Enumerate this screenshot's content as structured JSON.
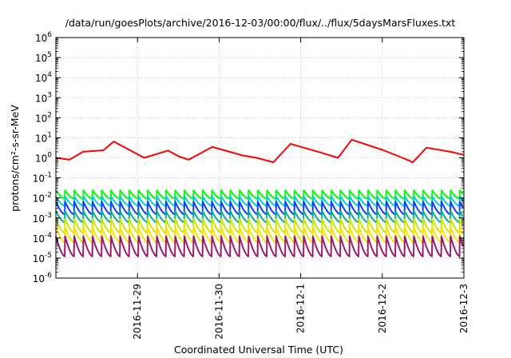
{
  "chart_data": {
    "type": "line",
    "title": "/data/run/goesPlots/archive/2016-12-03/00:00/flux/../flux/5daysMarsFluxes.txt",
    "xlabel": "Coordinated Universal Time (UTC)",
    "ylabel": "protons/cm²-s-sr-MeV",
    "y_scale": "log",
    "ylim_exp": [
      -6,
      6
    ],
    "y_tick_exponents": [
      -6,
      -5,
      -4,
      -3,
      -2,
      -1,
      0,
      1,
      2,
      3,
      4,
      5,
      6
    ],
    "y_tick_base": "10",
    "xlim": [
      "2016-11-28T00:00",
      "2016-12-03T00:00"
    ],
    "x_ticks": [
      {
        "value": "2016-11-29T00:00",
        "label": "2016-11-29"
      },
      {
        "value": "2016-11-30T00:00",
        "label": "2016-11-30"
      },
      {
        "value": "2016-12-01T00:00",
        "label": "2016-12-1"
      },
      {
        "value": "2016-12-02T00:00",
        "label": "2016-12-2"
      },
      {
        "value": "2016-12-03T00:00",
        "label": "2016-12-3"
      }
    ],
    "grid": true,
    "legend": "none",
    "sawtooth_period_hours": 2.7,
    "series": [
      {
        "color": "#ff0000",
        "shape": "red_profile",
        "profile": [
          {
            "t": "2016-11-28T00:00",
            "v": 1.0
          },
          {
            "t": "2016-11-28T04:00",
            "v": 0.8
          },
          {
            "t": "2016-11-28T08:00",
            "v": 2.0
          },
          {
            "t": "2016-11-28T14:00",
            "v": 2.4
          },
          {
            "t": "2016-11-28T17:00",
            "v": 6.5
          },
          {
            "t": "2016-11-29T02:00",
            "v": 1.0
          },
          {
            "t": "2016-11-29T09:00",
            "v": 2.3
          },
          {
            "t": "2016-11-29T12:00",
            "v": 1.2
          },
          {
            "t": "2016-11-29T15:00",
            "v": 0.8
          },
          {
            "t": "2016-11-29T22:00",
            "v": 3.5
          },
          {
            "t": "2016-11-30T07:00",
            "v": 1.3
          },
          {
            "t": "2016-11-30T11:00",
            "v": 1.0
          },
          {
            "t": "2016-11-30T16:00",
            "v": 0.6
          },
          {
            "t": "2016-11-30T21:00",
            "v": 5.0
          },
          {
            "t": "2016-12-01T06:00",
            "v": 1.8
          },
          {
            "t": "2016-12-01T11:00",
            "v": 1.0
          },
          {
            "t": "2016-12-01T15:00",
            "v": 8.0
          },
          {
            "t": "2016-12-02T00:00",
            "v": 2.5
          },
          {
            "t": "2016-12-02T06:00",
            "v": 1.0
          },
          {
            "t": "2016-12-02T09:00",
            "v": 0.6
          },
          {
            "t": "2016-12-02T13:00",
            "v": 3.2
          },
          {
            "t": "2016-12-02T20:00",
            "v": 2.0
          },
          {
            "t": "2016-12-03T00:00",
            "v": 1.4
          }
        ]
      },
      {
        "color": "#00ff00",
        "shape": "sawtooth",
        "peak": 0.024,
        "trough": 0.009
      },
      {
        "color": "#00d0d0",
        "shape": "sawtooth",
        "peak": 0.012,
        "trough": 0.004
      },
      {
        "color": "#0a3dff",
        "shape": "sawtooth",
        "peak": 0.0065,
        "trough": 0.0015
      },
      {
        "color": "#00b090",
        "shape": "sawtooth",
        "peak": 0.0022,
        "trough": 0.0006
      },
      {
        "color": "#c8e600",
        "shape": "sawtooth",
        "peak": 0.0009,
        "trough": 0.00018
      },
      {
        "color": "#ffe000",
        "shape": "sawtooth",
        "peak": 0.00035,
        "trough": 6e-05
      },
      {
        "color": "#9b1a6e",
        "shape": "sawtooth",
        "peak": 0.00012,
        "trough": 1.2e-05
      }
    ]
  }
}
